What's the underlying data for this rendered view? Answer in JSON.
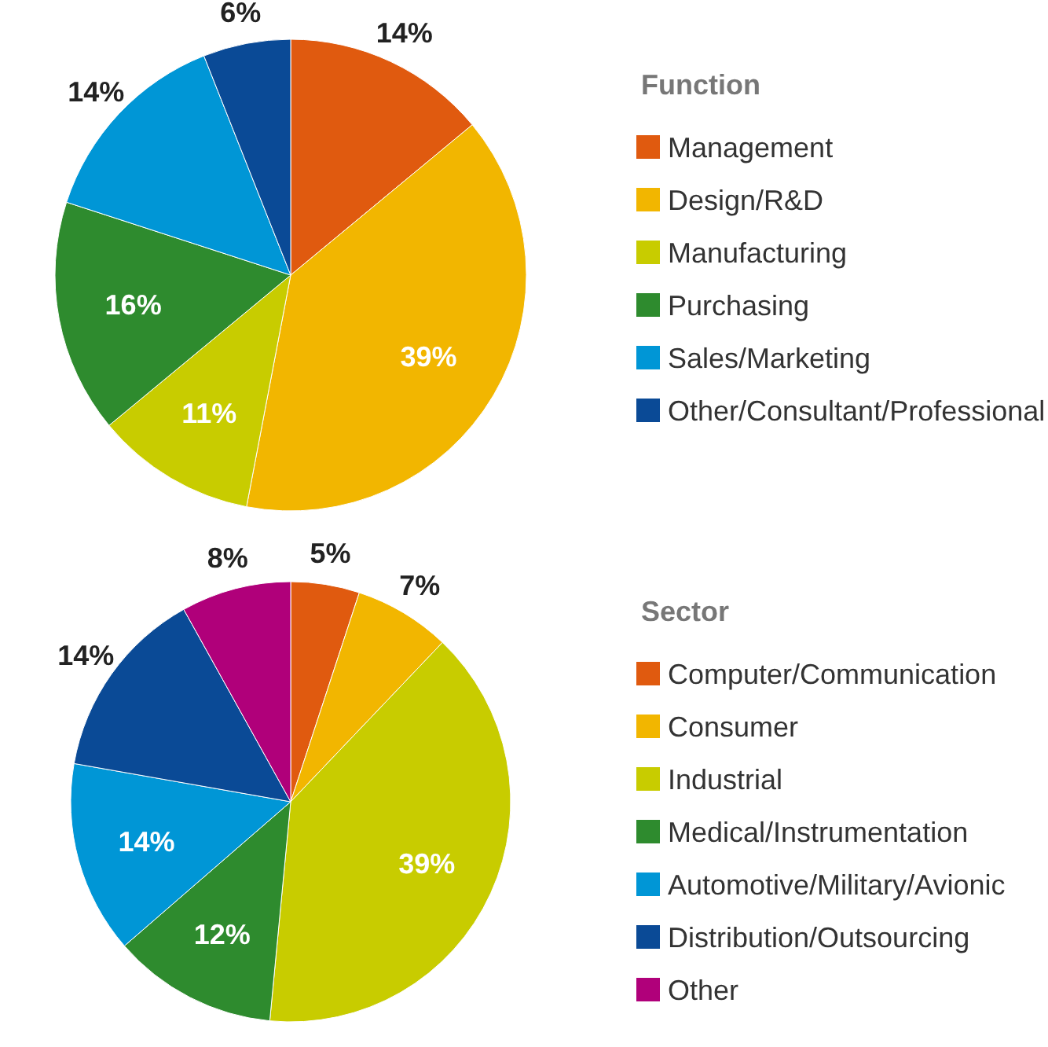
{
  "chart_data": [
    {
      "type": "pie",
      "legend_title": "Function",
      "categories": [
        "Management",
        "Design/R&D",
        "Manufacturing",
        "Purchasing",
        "Sales/Marketing",
        "Other/Consultant/Professional"
      ],
      "values": [
        14,
        39,
        11,
        16,
        14,
        6
      ],
      "colors": [
        "#e05a0f",
        "#f2b600",
        "#c8cc00",
        "#2e8b2e",
        "#0096d6",
        "#0a4a96"
      ],
      "value_labels": [
        "14%",
        "39%",
        "11%",
        "16%",
        "14%",
        "6%"
      ],
      "legend": "right"
    },
    {
      "type": "pie",
      "legend_title": "Sector",
      "categories": [
        "Computer/Communication",
        "Consumer",
        "Industrial",
        "Medical/Instrumentation",
        "Automotive/Military/Avionic",
        "Distribution/Outsourcing",
        "Other"
      ],
      "values": [
        5,
        7,
        39,
        12,
        14,
        14,
        8
      ],
      "colors": [
        "#e05a0f",
        "#f2b600",
        "#c8cc00",
        "#2e8b2e",
        "#0096d6",
        "#0a4a96",
        "#b0007a"
      ],
      "value_labels": [
        "5%",
        "7%",
        "39%",
        "12%",
        "14%",
        "14%",
        "8%"
      ],
      "legend": "right"
    }
  ]
}
